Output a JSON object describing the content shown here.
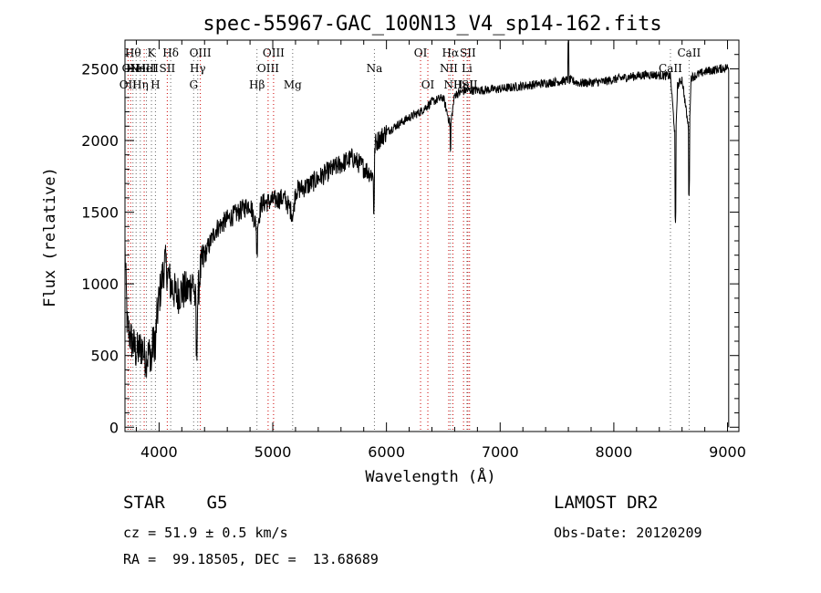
{
  "chart_data": {
    "type": "line",
    "title": "spec-55967-GAC_100N13_V4_sp14-162.fits",
    "xlabel": "Wavelength (Å)",
    "ylabel": "Flux (relative)",
    "xlim": [
      3700,
      9100
    ],
    "ylim": [
      -30,
      2700
    ],
    "x_ticks": [
      4000,
      5000,
      6000,
      7000,
      8000,
      9000
    ],
    "y_ticks": [
      0,
      500,
      1000,
      1500,
      2000,
      2500
    ],
    "grid": false,
    "series_color": "#000000",
    "line_marker_color_emission": "#cc0000",
    "line_marker_color_absorption": "#666666",
    "spectrum_knots": [
      [
        3700,
        1250
      ],
      [
        3720,
        700
      ],
      [
        3760,
        600
      ],
      [
        3800,
        520
      ],
      [
        3850,
        560
      ],
      [
        3880,
        480
      ],
      [
        3920,
        520
      ],
      [
        3960,
        600
      ],
      [
        4000,
        900
      ],
      [
        4050,
        1150
      ],
      [
        4100,
        1000
      ],
      [
        4150,
        920
      ],
      [
        4200,
        950
      ],
      [
        4250,
        950
      ],
      [
        4300,
        1020
      ],
      [
        4330,
        780
      ],
      [
        4360,
        1080
      ],
      [
        4400,
        1200
      ],
      [
        4500,
        1380
      ],
      [
        4600,
        1450
      ],
      [
        4700,
        1500
      ],
      [
        4800,
        1560
      ],
      [
        4860,
        1390
      ],
      [
        4900,
        1560
      ],
      [
        5000,
        1580
      ],
      [
        5100,
        1600
      ],
      [
        5180,
        1480
      ],
      [
        5200,
        1650
      ],
      [
        5300,
        1680
      ],
      [
        5500,
        1790
      ],
      [
        5700,
        1880
      ],
      [
        5890,
        1750
      ],
      [
        5900,
        1980
      ],
      [
        6000,
        2060
      ],
      [
        6200,
        2160
      ],
      [
        6300,
        2200
      ],
      [
        6400,
        2270
      ],
      [
        6500,
        2300
      ],
      [
        6563,
        2100
      ],
      [
        6600,
        2320
      ],
      [
        6700,
        2350
      ],
      [
        6800,
        2350
      ],
      [
        7000,
        2360
      ],
      [
        7200,
        2380
      ],
      [
        7400,
        2400
      ],
      [
        7590,
        2420
      ],
      [
        7620,
        2420
      ],
      [
        7700,
        2400
      ],
      [
        7900,
        2410
      ],
      [
        8100,
        2440
      ],
      [
        8300,
        2460
      ],
      [
        8498,
        2450
      ],
      [
        8542,
        1990
      ],
      [
        8560,
        2380
      ],
      [
        8600,
        2430
      ],
      [
        8662,
        2050
      ],
      [
        8680,
        2440
      ],
      [
        8800,
        2480
      ],
      [
        9000,
        2510
      ],
      [
        9010,
        2500
      ]
    ],
    "spectrum_noise": 45,
    "absorption_features": [
      {
        "x": 5890,
        "depth": 230
      },
      {
        "x": 6563,
        "depth": 180
      },
      {
        "x": 8542,
        "depth": 580
      },
      {
        "x": 8662,
        "depth": 420
      },
      {
        "x": 4330,
        "depth": 280
      },
      {
        "x": 4861,
        "depth": 150
      },
      {
        "x": 3933,
        "depth": 150
      },
      {
        "x": 3968,
        "depth": 150
      }
    ],
    "emission_spikes": [
      {
        "x": 7600,
        "height": 280
      }
    ],
    "lines": [
      {
        "wl": 3727,
        "label": "OII",
        "type": "em",
        "row": 2
      },
      {
        "wl": 3750,
        "label": "OII",
        "type": "em",
        "row": 1
      },
      {
        "wl": 3770,
        "label": "Hθ",
        "type": "abs",
        "row": 0
      },
      {
        "wl": 3798,
        "label": "HeI",
        "type": "abs",
        "row": 1
      },
      {
        "wl": 3835,
        "label": "Hη",
        "type": "abs",
        "row": 2
      },
      {
        "wl": 3869,
        "label": "NeIII",
        "type": "em",
        "row": 1
      },
      {
        "wl": 3889,
        "label": "HeI",
        "type": "abs",
        "row": 1
      },
      {
        "wl": 3933,
        "label": "K",
        "type": "abs",
        "row": 0
      },
      {
        "wl": 3968,
        "label": "H",
        "type": "abs",
        "row": 2
      },
      {
        "wl": 4072,
        "label": "SII",
        "type": "em",
        "row": 1
      },
      {
        "wl": 4102,
        "label": "Hδ",
        "type": "abs",
        "row": 0
      },
      {
        "wl": 4304,
        "label": "G",
        "type": "abs",
        "row": 2
      },
      {
        "wl": 4340,
        "label": "Hγ",
        "type": "abs",
        "row": 1
      },
      {
        "wl": 4363,
        "label": "OIII",
        "type": "em",
        "row": 0
      },
      {
        "wl": 4861,
        "label": "Hβ",
        "type": "abs",
        "row": 2
      },
      {
        "wl": 4959,
        "label": "OIII",
        "type": "em",
        "row": 1
      },
      {
        "wl": 5007,
        "label": "OIII",
        "type": "em",
        "row": 0
      },
      {
        "wl": 5175,
        "label": "Mg",
        "type": "abs",
        "row": 2
      },
      {
        "wl": 5894,
        "label": "Na",
        "type": "abs",
        "row": 1
      },
      {
        "wl": 6300,
        "label": "OI",
        "type": "em",
        "row": 0
      },
      {
        "wl": 6364,
        "label": "OI",
        "type": "em",
        "row": 2
      },
      {
        "wl": 6548,
        "label": "NII",
        "type": "em",
        "row": 1
      },
      {
        "wl": 6563,
        "label": "Hα",
        "type": "abs",
        "row": 0
      },
      {
        "wl": 6584,
        "label": "NII",
        "type": "em",
        "row": 2
      },
      {
        "wl": 6678,
        "label": "HeI",
        "type": "em",
        "row": 2
      },
      {
        "wl": 6708,
        "label": "Li",
        "type": "abs",
        "row": 1
      },
      {
        "wl": 6716,
        "label": "SII",
        "type": "em",
        "row": 0
      },
      {
        "wl": 6731,
        "label": "SII",
        "type": "em",
        "row": 2
      },
      {
        "wl": 8498,
        "label": "CaII",
        "type": "abs",
        "row": 1
      },
      {
        "wl": 8662,
        "label": "CaII",
        "type": "abs",
        "row": 0
      }
    ]
  },
  "info": {
    "class_label": "STAR",
    "subclass": "G5",
    "survey": "LAMOST DR2",
    "cz": "cz = 51.9 ± 0.5 km/s",
    "obs_date": "Obs-Date: 20120209",
    "coords": "RA =  99.18505, DEC =  13.68689"
  }
}
